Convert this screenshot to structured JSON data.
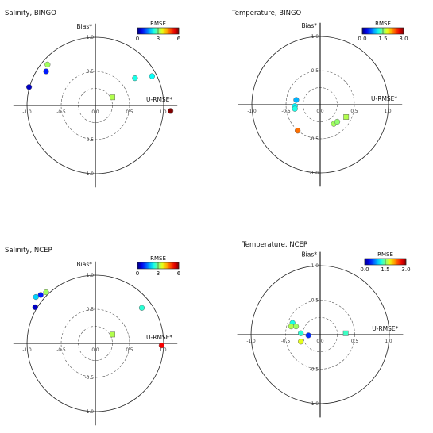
{
  "chart_data": [
    {
      "type": "scatter",
      "title": "Salinity, BINGO",
      "xlabel": "U-RMSE*",
      "ylabel": "Bias*",
      "xlim": [
        -1.2,
        1.2
      ],
      "ylim": [
        -1.2,
        1.2
      ],
      "x_ticks": [
        "-1.0",
        "-0.5",
        "0.0",
        "0.5",
        "1.0"
      ],
      "y_ticks": [
        "1.0",
        "0.5",
        "0.0",
        "-0.5",
        "-1.0"
      ],
      "colorbar": {
        "title": "RMSE",
        "min": 0,
        "max": 6,
        "ticks": [
          "0",
          "3",
          "6"
        ]
      },
      "points": [
        {
          "x": -0.7,
          "y": 0.6,
          "rmse": 3.2,
          "marker": "circle"
        },
        {
          "x": -0.72,
          "y": 0.5,
          "rmse": 0.9,
          "marker": "circle"
        },
        {
          "x": -0.97,
          "y": 0.27,
          "rmse": 0.4,
          "marker": "circle"
        },
        {
          "x": 0.58,
          "y": 0.4,
          "rmse": 2.4,
          "marker": "circle"
        },
        {
          "x": 0.83,
          "y": 0.43,
          "rmse": 2.3,
          "marker": "circle"
        },
        {
          "x": 1.1,
          "y": -0.08,
          "rmse": 6.0,
          "marker": "circle"
        },
        {
          "x": 0.25,
          "y": 0.12,
          "rmse": 3.3,
          "marker": "square"
        }
      ]
    },
    {
      "type": "scatter",
      "title": "Temperature, BINGO",
      "xlabel": "U-RMSE*",
      "ylabel": "Bias*",
      "xlim": [
        -1.2,
        1.2
      ],
      "ylim": [
        -1.2,
        1.2
      ],
      "x_ticks": [
        "-1.0",
        "-0.5",
        "0.0",
        "0.5",
        "1.0"
      ],
      "y_ticks": [
        "1.0",
        "0.5",
        "0.0",
        "-0.5",
        "-1.0"
      ],
      "colorbar": {
        "title": "RMSE",
        "min": 0.0,
        "max": 3.0,
        "ticks": [
          "0.0",
          "1.5",
          "3.0"
        ]
      },
      "points": [
        {
          "x": -0.35,
          "y": 0.07,
          "rmse": 0.9,
          "marker": "circle"
        },
        {
          "x": -0.37,
          "y": -0.02,
          "rmse": 1.1,
          "marker": "circle"
        },
        {
          "x": -0.37,
          "y": -0.06,
          "rmse": 1.2,
          "marker": "circle"
        },
        {
          "x": -0.33,
          "y": -0.38,
          "rmse": 2.3,
          "marker": "circle"
        },
        {
          "x": 0.2,
          "y": -0.28,
          "rmse": 1.6,
          "marker": "circle"
        },
        {
          "x": 0.25,
          "y": -0.25,
          "rmse": 1.55,
          "marker": "circle"
        },
        {
          "x": 0.38,
          "y": -0.18,
          "rmse": 1.65,
          "marker": "square"
        }
      ]
    },
    {
      "type": "scatter",
      "title": "Salinity, NCEP",
      "xlabel": "U-RMSE*",
      "ylabel": "Bias*",
      "xlim": [
        -1.2,
        1.2
      ],
      "ylim": [
        -1.2,
        1.2
      ],
      "x_ticks": [
        "-1.0",
        "-0.5",
        "0.0",
        "0.5",
        "1.0"
      ],
      "y_ticks": [
        "1.0",
        "0.5",
        "0.0",
        "-0.5",
        "-1.0"
      ],
      "colorbar": {
        "title": "RMSE",
        "min": 0,
        "max": 6,
        "ticks": [
          "0",
          "3",
          "6"
        ]
      },
      "points": [
        {
          "x": -0.72,
          "y": 0.75,
          "rmse": 3.2,
          "marker": "circle"
        },
        {
          "x": -0.8,
          "y": 0.71,
          "rmse": 0.9,
          "marker": "circle"
        },
        {
          "x": -0.87,
          "y": 0.68,
          "rmse": 2.0,
          "marker": "circle"
        },
        {
          "x": -0.88,
          "y": 0.53,
          "rmse": 0.4,
          "marker": "circle"
        },
        {
          "x": 0.68,
          "y": 0.52,
          "rmse": 2.5,
          "marker": "circle"
        },
        {
          "x": 0.97,
          "y": -0.03,
          "rmse": 5.3,
          "marker": "circle"
        },
        {
          "x": 0.25,
          "y": 0.13,
          "rmse": 3.3,
          "marker": "square"
        }
      ]
    },
    {
      "type": "scatter",
      "title": "Temperature, NCEP",
      "xlabel": "U-RMSE*",
      "ylabel": "Bias*",
      "xlim": [
        -1.2,
        1.2
      ],
      "ylim": [
        -1.2,
        1.2
      ],
      "x_ticks": [
        "-1.0",
        "-0.5",
        "0.0",
        "0.5",
        "1.0"
      ],
      "y_ticks": [
        "1.0",
        "0.5",
        "0.0",
        "-0.5",
        "-1.0"
      ],
      "colorbar": {
        "title": "RMSE",
        "min": 0.0,
        "max": 3.0,
        "ticks": [
          "0.0",
          "1.5",
          "3.0"
        ]
      },
      "points": [
        {
          "x": -0.4,
          "y": 0.17,
          "rmse": 1.2,
          "marker": "circle"
        },
        {
          "x": -0.42,
          "y": 0.12,
          "rmse": 1.65,
          "marker": "circle"
        },
        {
          "x": -0.35,
          "y": 0.12,
          "rmse": 1.6,
          "marker": "circle"
        },
        {
          "x": -0.28,
          "y": 0.02,
          "rmse": 1.25,
          "marker": "circle"
        },
        {
          "x": -0.17,
          "y": -0.01,
          "rmse": 0.5,
          "marker": "circle"
        },
        {
          "x": -0.28,
          "y": -0.1,
          "rmse": 1.8,
          "marker": "circle"
        },
        {
          "x": 0.37,
          "y": 0.02,
          "rmse": 1.3,
          "marker": "square"
        }
      ]
    }
  ]
}
